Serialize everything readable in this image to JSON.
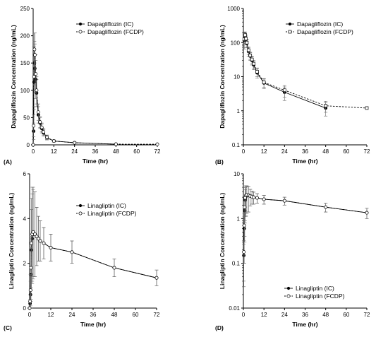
{
  "chart_data": [
    {
      "panel_label": "(A)",
      "type": "line",
      "xlabel": "Time (hr)",
      "ylabel": "Dapagliflozin Concentration (ng/mL)",
      "xlim": [
        0,
        72
      ],
      "ylim": [
        0,
        250
      ],
      "yscale": "linear",
      "xticks": [
        0,
        12,
        24,
        36,
        48,
        60,
        72
      ],
      "yticks": [
        0,
        50,
        100,
        150,
        200,
        250
      ],
      "ytick_labels": [
        "0",
        "50",
        "100",
        "150",
        "200",
        "250"
      ],
      "legend_position": "upper-right",
      "series": [
        {
          "name": "Dapagliflozin (IC)",
          "marker": "filled-circle",
          "line": "solid",
          "x": [
            0,
            0.25,
            0.5,
            0.75,
            1,
            1.5,
            2,
            3,
            4,
            5,
            6,
            8,
            12,
            24,
            48
          ],
          "y": [
            0,
            25,
            115,
            150,
            140,
            120,
            95,
            55,
            40,
            30,
            22,
            13,
            7,
            4,
            1.2
          ],
          "err": [
            0,
            15,
            50,
            40,
            45,
            35,
            25,
            15,
            10,
            8,
            6,
            4,
            2,
            1.5,
            0.5
          ]
        },
        {
          "name": "Dapagliflozin (FCDP)",
          "marker": "open-circle",
          "line": "dashed",
          "x": [
            0,
            0.25,
            0.5,
            0.75,
            1,
            1.5,
            2,
            3,
            4,
            5,
            6,
            8,
            12,
            24,
            48,
            72
          ],
          "y": [
            0,
            35,
            125,
            175,
            165,
            130,
            100,
            60,
            42,
            32,
            24,
            14,
            7,
            3.8,
            1.3,
            1.2
          ],
          "err": [
            0,
            20,
            55,
            30,
            40,
            35,
            25,
            15,
            10,
            8,
            6,
            4,
            2,
            1.5,
            0.5,
            0
          ]
        }
      ]
    },
    {
      "panel_label": "(B)",
      "type": "line",
      "xlabel": "Time (hr)",
      "ylabel": "Dapagliflozin Concentration (ng/mL)",
      "xlim": [
        0,
        72
      ],
      "ylim": [
        0.1,
        1000
      ],
      "yscale": "log",
      "xticks": [
        0,
        12,
        24,
        36,
        48,
        60,
        72
      ],
      "yticks": [
        0.1,
        1,
        10,
        100,
        1000
      ],
      "ytick_labels": [
        "0.1",
        "1",
        "10",
        "100",
        "1000"
      ],
      "legend_position": "upper-right",
      "series": [
        {
          "name": "Dapagliflozin (IC)",
          "marker": "filled-circle",
          "line": "solid",
          "x": [
            0.5,
            0.75,
            1,
            1.5,
            2,
            3,
            4,
            5,
            6,
            8,
            12,
            24,
            48
          ],
          "y": [
            115,
            150,
            140,
            120,
            95,
            55,
            40,
            30,
            22,
            13,
            6.5,
            3.5,
            1.2
          ],
          "err": [
            50,
            40,
            45,
            35,
            25,
            15,
            10,
            8,
            6,
            4,
            2,
            1.5,
            0.5
          ]
        },
        {
          "name": "Dapagliflozin (FCDP)",
          "marker": "open-square",
          "line": "dashed",
          "x": [
            0.5,
            0.75,
            1,
            1.5,
            2,
            3,
            4,
            5,
            6,
            8,
            12,
            24,
            48,
            72
          ],
          "y": [
            125,
            175,
            165,
            130,
            100,
            60,
            42,
            32,
            24,
            14,
            6.8,
            4,
            1.4,
            1.2
          ],
          "err": [
            55,
            30,
            40,
            35,
            25,
            15,
            10,
            8,
            6,
            4,
            2,
            1.5,
            0.5,
            0
          ]
        }
      ]
    },
    {
      "panel_label": "(C)",
      "type": "line",
      "xlabel": "Time (hr)",
      "ylabel": "Linagliptin Concentration (ng/mL)",
      "xlim": [
        0,
        72
      ],
      "ylim": [
        0,
        6
      ],
      "yscale": "linear",
      "xticks": [
        0,
        12,
        24,
        36,
        48,
        60,
        72
      ],
      "yticks": [
        0,
        2,
        4,
        6
      ],
      "ytick_labels": [
        "0",
        "2",
        "4",
        "6"
      ],
      "legend_position": "upper-right",
      "series": [
        {
          "name": "Linagliptin (IC)",
          "marker": "filled-circle",
          "line": "solid",
          "x": [
            0,
            0.25,
            0.5,
            0.75,
            1,
            1.5,
            2,
            3,
            4,
            5,
            6,
            8,
            12,
            24,
            48,
            72
          ],
          "y": [
            0,
            0.2,
            0.6,
            1.5,
            2.6,
            3.1,
            3.3,
            3.3,
            3.2,
            3.1,
            3.0,
            2.9,
            2.7,
            2.5,
            1.8,
            1.35
          ],
          "err": [
            0,
            0.2,
            0.6,
            1.2,
            1.8,
            2.0,
            2.0,
            1.9,
            1.3,
            1.0,
            0.9,
            0.7,
            0.6,
            0.5,
            0.4,
            0.35
          ]
        },
        {
          "name": "Linagliptin (FCDP)",
          "marker": "open-circle",
          "line": "dashed",
          "x": [
            0,
            0.25,
            0.5,
            0.75,
            1,
            1.5,
            2,
            3,
            4,
            5,
            6,
            8,
            12,
            24,
            48,
            72
          ],
          "y": [
            0,
            0.3,
            0.8,
            1.8,
            2.9,
            3.3,
            3.4,
            3.3,
            3.2,
            3.1,
            3.0,
            2.9,
            2.7,
            2.5,
            1.8,
            1.35
          ],
          "err": [
            0,
            0.3,
            0.7,
            1.4,
            2.0,
            2.1,
            2.0,
            1.9,
            1.3,
            1.0,
            0.9,
            0.7,
            0.6,
            0.5,
            0.4,
            0.35
          ]
        }
      ]
    },
    {
      "panel_label": "(D)",
      "type": "line",
      "xlabel": "Time (hr)",
      "ylabel": "Linagliptin Concentration (ng/mL)",
      "xlim": [
        0,
        72
      ],
      "ylim": [
        0.01,
        10
      ],
      "yscale": "log",
      "xticks": [
        0,
        12,
        24,
        36,
        48,
        60,
        72
      ],
      "yticks": [
        0.01,
        0.1,
        1,
        10
      ],
      "ytick_labels": [
        "0.01",
        "0.1",
        "1",
        "10"
      ],
      "legend_position": "lower-right",
      "series": [
        {
          "name": "Linagliptin (IC)",
          "marker": "filled-circle",
          "line": "solid",
          "x": [
            0.25,
            0.5,
            0.75,
            1,
            1.5,
            2,
            3,
            4,
            5,
            6,
            8,
            12,
            24,
            48,
            72
          ],
          "y": [
            0.15,
            0.6,
            1.5,
            2.6,
            3.1,
            3.3,
            3.3,
            3.2,
            3.1,
            3.0,
            2.9,
            2.7,
            2.5,
            1.8,
            1.35
          ],
          "err": [
            0.12,
            0.5,
            1.2,
            1.8,
            2.0,
            2.0,
            1.9,
            1.3,
            1.0,
            0.9,
            0.7,
            0.6,
            0.5,
            0.4,
            0.35
          ]
        },
        {
          "name": "Linagliptin (FCDP)",
          "marker": "open-circle",
          "line": "dashed",
          "x": [
            0.25,
            0.5,
            0.75,
            1,
            1.5,
            2,
            3,
            4,
            5,
            6,
            8,
            12,
            24,
            48,
            72
          ],
          "y": [
            0.18,
            0.7,
            1.8,
            2.9,
            3.3,
            3.4,
            3.3,
            3.2,
            3.1,
            3.0,
            2.9,
            2.7,
            2.5,
            1.8,
            1.35
          ],
          "err": [
            0.14,
            0.6,
            1.4,
            2.0,
            2.1,
            2.0,
            1.9,
            1.3,
            1.0,
            0.9,
            0.7,
            0.6,
            0.5,
            0.4,
            0.35
          ]
        }
      ]
    }
  ]
}
